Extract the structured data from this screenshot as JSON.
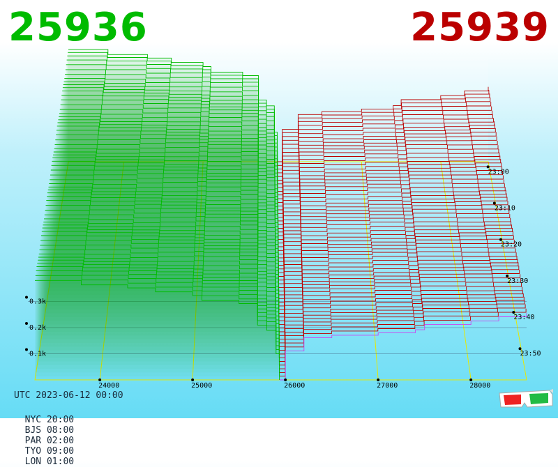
{
  "bid_price": "25936",
  "ask_price": "25939",
  "timestamp_utc": "UTC 2023-06-12 00:00",
  "time_zones": [
    {
      "label": "NYC 20:00"
    },
    {
      "label": "BJS 08:00"
    },
    {
      "label": "PAR 02:00"
    },
    {
      "label": "TYO 09:00"
    },
    {
      "label": "LON 01:00"
    }
  ],
  "colors": {
    "bid": "#00bb00",
    "ask": "#bb0000",
    "grid": "#e8e800",
    "latest": "#cc44ee"
  },
  "icons": [
    "3d-glasses-icon"
  ],
  "chart_data": {
    "type": "area",
    "x_axis": {
      "tick_labels": [
        "24000",
        "25000",
        "26000",
        "27000",
        "28000"
      ],
      "range": [
        23300,
        28600
      ]
    },
    "z_axis": {
      "tick_labels": [
        "0.1k",
        "0.2k",
        "0.3k"
      ],
      "range": [
        0,
        400
      ]
    },
    "time_axis": {
      "tick_labels": [
        "23:00",
        "23:10",
        "23:20",
        "23:30",
        "23:40",
        "23:50"
      ],
      "range": [
        "23:00",
        "23:59"
      ]
    },
    "mid_price": 25937.5,
    "bid_levels": [
      23300,
      23800,
      24300,
      24600,
      25000,
      25100,
      25500,
      25700,
      25800,
      25900,
      25936
    ],
    "bid_depth_latest": [
      383,
      366,
      354,
      339,
      325,
      306,
      294,
      211,
      191,
      101,
      0
    ],
    "ask_levels": [
      25939,
      26000,
      26200,
      26500,
      27000,
      27400,
      27500,
      28000,
      28300,
      28600
    ],
    "ask_depth_latest": [
      0,
      111,
      162,
      172,
      181,
      193,
      213,
      227,
      243,
      257
    ],
    "snapshots": 60
  }
}
